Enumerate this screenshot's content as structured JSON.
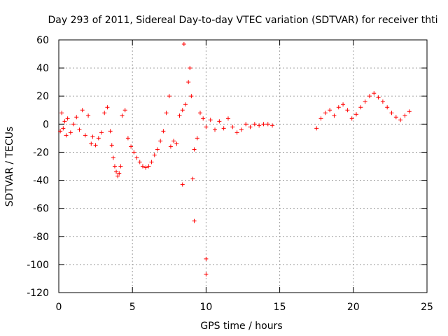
{
  "chart_data": {
    "type": "scatter",
    "title": "Day 293 of 2011, Sidereal Day-to-day VTEC variation (SDTVAR) for receiver thti",
    "xlabel": "GPS time / hours",
    "ylabel": "SDTVAR / TECUs",
    "xlim": [
      0,
      25
    ],
    "ylim": [
      -120,
      60
    ],
    "xticks": [
      0,
      5,
      10,
      15,
      20,
      25
    ],
    "yticks": [
      -120,
      -100,
      -80,
      -60,
      -40,
      -20,
      0,
      20,
      40,
      60
    ],
    "grid": true,
    "marker": "+",
    "series": [
      {
        "name": "SDTVAR",
        "color": "#ff0000",
        "points": [
          [
            0.1,
            -5
          ],
          [
            0.2,
            8
          ],
          [
            0.3,
            -3
          ],
          [
            0.4,
            2
          ],
          [
            0.5,
            -8
          ],
          [
            0.6,
            4
          ],
          [
            0.8,
            -6
          ],
          [
            1.0,
            0
          ],
          [
            1.2,
            5
          ],
          [
            1.4,
            -4
          ],
          [
            1.6,
            10
          ],
          [
            1.8,
            -8
          ],
          [
            2.0,
            6
          ],
          [
            2.2,
            -14
          ],
          [
            2.3,
            -9
          ],
          [
            2.5,
            -15
          ],
          [
            2.7,
            -10
          ],
          [
            2.9,
            -6
          ],
          [
            3.1,
            8
          ],
          [
            3.3,
            12
          ],
          [
            3.5,
            -5
          ],
          [
            3.6,
            -15
          ],
          [
            3.7,
            -24
          ],
          [
            3.8,
            -30
          ],
          [
            3.9,
            -34
          ],
          [
            4.0,
            -37
          ],
          [
            4.1,
            -35
          ],
          [
            4.2,
            -30
          ],
          [
            4.3,
            6
          ],
          [
            4.5,
            10
          ],
          [
            4.7,
            -10
          ],
          [
            4.9,
            -16
          ],
          [
            5.1,
            -20
          ],
          [
            5.3,
            -24
          ],
          [
            5.5,
            -27
          ],
          [
            5.7,
            -30
          ],
          [
            5.9,
            -31
          ],
          [
            6.1,
            -30
          ],
          [
            6.3,
            -27
          ],
          [
            6.5,
            -22
          ],
          [
            6.7,
            -18
          ],
          [
            6.9,
            -12
          ],
          [
            7.1,
            -5
          ],
          [
            7.3,
            8
          ],
          [
            7.5,
            20
          ],
          [
            7.6,
            -16
          ],
          [
            7.8,
            -12
          ],
          [
            8.0,
            -14
          ],
          [
            8.2,
            6
          ],
          [
            8.4,
            10
          ],
          [
            8.5,
            57
          ],
          [
            8.6,
            14
          ],
          [
            8.8,
            30
          ],
          [
            8.9,
            40
          ],
          [
            9.0,
            20
          ],
          [
            9.2,
            -18
          ],
          [
            9.4,
            -10
          ],
          [
            9.6,
            8
          ],
          [
            9.8,
            4
          ],
          [
            10.0,
            -2
          ],
          [
            10.3,
            3
          ],
          [
            10.6,
            -4
          ],
          [
            10.9,
            2
          ],
          [
            11.2,
            -3
          ],
          [
            11.5,
            4
          ],
          [
            11.8,
            -2
          ],
          [
            12.1,
            -6
          ],
          [
            12.4,
            -4
          ],
          [
            12.7,
            0
          ],
          [
            13.0,
            -2
          ],
          [
            13.3,
            0
          ],
          [
            13.6,
            -1
          ],
          [
            13.9,
            0
          ],
          [
            14.2,
            0
          ],
          [
            14.5,
            -1
          ],
          [
            8.4,
            -43
          ],
          [
            9.1,
            -39
          ],
          [
            9.2,
            -69
          ],
          [
            10.0,
            -96
          ],
          [
            10.0,
            -107
          ],
          [
            17.5,
            -3
          ],
          [
            17.8,
            4
          ],
          [
            18.1,
            8
          ],
          [
            18.4,
            10
          ],
          [
            18.7,
            6
          ],
          [
            19.0,
            12
          ],
          [
            19.3,
            14
          ],
          [
            19.6,
            10
          ],
          [
            19.9,
            4
          ],
          [
            20.2,
            7
          ],
          [
            20.5,
            12
          ],
          [
            20.8,
            16
          ],
          [
            21.1,
            20
          ],
          [
            21.4,
            22
          ],
          [
            21.7,
            19
          ],
          [
            22.0,
            16
          ],
          [
            22.3,
            12
          ],
          [
            22.6,
            8
          ],
          [
            22.9,
            5
          ],
          [
            23.2,
            3
          ],
          [
            23.5,
            6
          ],
          [
            23.8,
            9
          ]
        ]
      }
    ]
  }
}
